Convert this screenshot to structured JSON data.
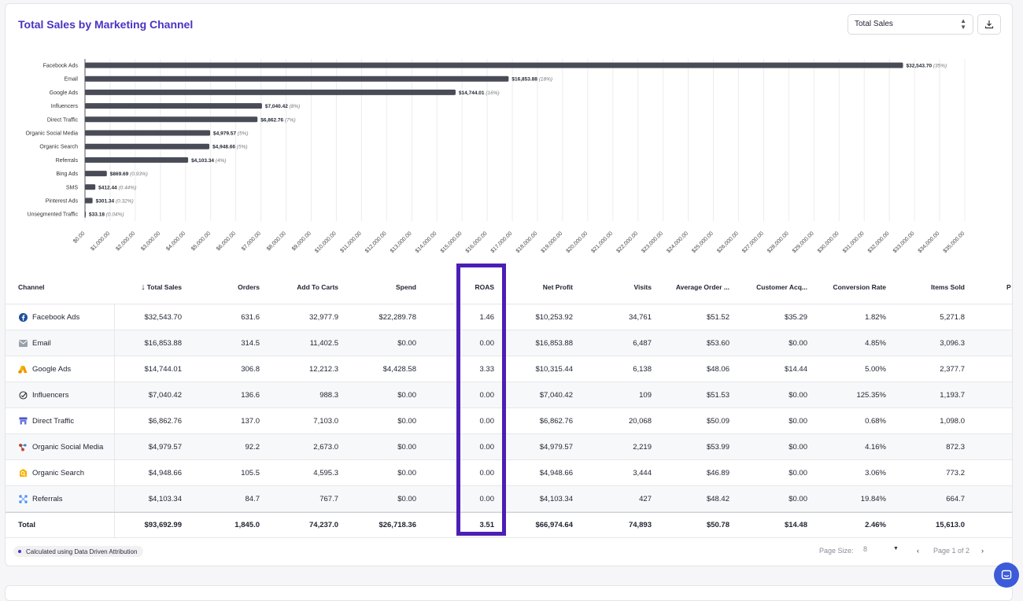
{
  "title": "Total Sales by Marketing Channel",
  "metric_select": {
    "value": "Total Sales"
  },
  "chart_data": {
    "type": "bar",
    "orientation": "horizontal",
    "categories": [
      "Facebook Ads",
      "Email",
      "Google Ads",
      "Influencers",
      "Direct Traffic",
      "Organic Social Media",
      "Organic Search",
      "Referrals",
      "Bing Ads",
      "SMS",
      "Pinterest Ads",
      "Unsegmented Traffic"
    ],
    "values": [
      32543.7,
      16853.88,
      14744.01,
      7040.42,
      6862.76,
      4979.57,
      4948.66,
      4103.34,
      869.69,
      412.44,
      301.34,
      33.18
    ],
    "value_labels": [
      "$32,543.70",
      "$16,853.88",
      "$14,744.01",
      "$7,040.42",
      "$6,862.76",
      "$4,979.57",
      "$4,948.66",
      "$4,103.34",
      "$869.69",
      "$412.44",
      "$301.34",
      "$33.18"
    ],
    "pct_labels": [
      "(35%)",
      "(18%)",
      "(16%)",
      "(8%)",
      "(7%)",
      "(5%)",
      "(5%)",
      "(4%)",
      "(0.93%)",
      "(0.44%)",
      "(0.32%)",
      "(0.04%)"
    ],
    "xlim": [
      0,
      35000
    ],
    "xtick_labels": [
      "$0.00",
      "$1,000.00",
      "$2,000.00",
      "$3,000.00",
      "$4,000.00",
      "$5,000.00",
      "$6,000.00",
      "$7,000.00",
      "$8,000.00",
      "$9,000.00",
      "$10,000.00",
      "$11,000.00",
      "$12,000.00",
      "$13,000.00",
      "$14,000.00",
      "$15,000.00",
      "$16,000.00",
      "$17,000.00",
      "$18,000.00",
      "$19,000.00",
      "$20,000.00",
      "$21,000.00",
      "$22,000.00",
      "$23,000.00",
      "$24,000.00",
      "$25,000.00",
      "$26,000.00",
      "$27,000.00",
      "$28,000.00",
      "$29,000.00",
      "$30,000.00",
      "$31,000.00",
      "$32,000.00",
      "$33,000.00",
      "$34,000.00",
      "$35,000.00"
    ],
    "grid": true,
    "bar_color": "#494c57"
  },
  "table": {
    "headers": [
      "Channel",
      "Total Sales",
      "Orders",
      "Add To Carts",
      "Spend",
      "ROAS",
      "Net Profit",
      "Visits",
      "Average Order ...",
      "Customer Acq...",
      "Conversion Rate",
      "Items Sold",
      "P"
    ],
    "sort_icon": "sort-descending-arrow",
    "rows": [
      {
        "icon": "facebook-icon",
        "cells": [
          "Facebook Ads",
          "$32,543.70",
          "631.6",
          "32,977.9",
          "$22,289.78",
          "1.46",
          "$10,253.92",
          "34,761",
          "$51.52",
          "$35.29",
          "1.82%",
          "5,271.8"
        ]
      },
      {
        "icon": "mail-icon",
        "cells": [
          "Email",
          "$16,853.88",
          "314.5",
          "11,402.5",
          "$0.00",
          "0.00",
          "$16,853.88",
          "6,487",
          "$53.60",
          "$0.00",
          "4.85%",
          "3,096.3"
        ]
      },
      {
        "icon": "google-ads-icon",
        "cells": [
          "Google Ads",
          "$14,744.01",
          "306.8",
          "12,212.3",
          "$4,428.58",
          "3.33",
          "$10,315.44",
          "6,138",
          "$48.06",
          "$14.44",
          "5.00%",
          "2,377.7"
        ]
      },
      {
        "icon": "influencer-icon",
        "cells": [
          "Influencers",
          "$7,040.42",
          "136.6",
          "988.3",
          "$0.00",
          "0.00",
          "$7,040.42",
          "109",
          "$51.53",
          "$0.00",
          "125.35%",
          "1,193.7"
        ]
      },
      {
        "icon": "direct-traffic-icon",
        "cells": [
          "Direct Traffic",
          "$6,862.76",
          "137.0",
          "7,103.0",
          "$0.00",
          "0.00",
          "$6,862.76",
          "20,068",
          "$50.09",
          "$0.00",
          "0.68%",
          "1,098.0"
        ]
      },
      {
        "icon": "organic-social-icon",
        "cells": [
          "Organic Social Media",
          "$4,979.57",
          "92.2",
          "2,673.0",
          "$0.00",
          "0.00",
          "$4,979.57",
          "2,219",
          "$53.99",
          "$0.00",
          "4.16%",
          "872.3"
        ]
      },
      {
        "icon": "organic-search-icon",
        "cells": [
          "Organic Search",
          "$4,948.66",
          "105.5",
          "4,595.3",
          "$0.00",
          "0.00",
          "$4,948.66",
          "3,444",
          "$46.89",
          "$0.00",
          "3.06%",
          "773.2"
        ]
      },
      {
        "icon": "referrals-icon",
        "cells": [
          "Referrals",
          "$4,103.34",
          "84.7",
          "767.7",
          "$0.00",
          "0.00",
          "$4,103.34",
          "427",
          "$48.42",
          "$0.00",
          "19.84%",
          "664.7"
        ]
      }
    ],
    "total": [
      "Total",
      "$93,692.99",
      "1,845.0",
      "74,237.0",
      "$26,718.36",
      "3.51",
      "$66,974.64",
      "74,893",
      "$50.78",
      "$14.48",
      "2.46%",
      "15,613.0"
    ]
  },
  "footer": {
    "attribution": "Calculated using Data Driven Attribution",
    "page_size_label": "Page Size:",
    "page_size_value": "8",
    "page_info": "Page 1 of 2"
  },
  "colors": {
    "accent": "#4b32c3",
    "highlight_box": "#4b1fb5",
    "bar": "#494c57",
    "chat": "#3b5bd9"
  }
}
